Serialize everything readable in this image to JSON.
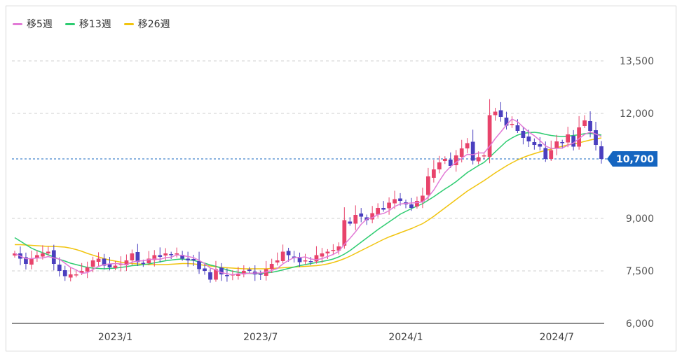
{
  "chart_data": {
    "type": "candlestick",
    "title": "",
    "legend": [
      {
        "name": "移5週",
        "color": "#e27ad6"
      },
      {
        "name": "移13週",
        "color": "#2ecc71"
      },
      {
        "name": "移26週",
        "color": "#f1c40f"
      }
    ],
    "legend_position": "top-left",
    "yticks": [
      "13,500",
      "12,000",
      "9,000",
      "7,500",
      "6,000"
    ],
    "ylim": [
      6000,
      14000
    ],
    "xticks": [
      {
        "label": "2023/1",
        "index": 18
      },
      {
        "label": "2023/7",
        "index": 44
      },
      {
        "label": "2024/1",
        "index": 70
      },
      {
        "label": "2024/7",
        "index": 97
      }
    ],
    "current_price": 10700,
    "current_price_label": "10,700",
    "grid": true,
    "colors": {
      "up": "#e8436b",
      "down": "#4a3fbf",
      "current": "#1565c0"
    },
    "closes": [
      8000,
      7850,
      7700,
      7850,
      7950,
      8000,
      8050,
      7700,
      7500,
      7350,
      7400,
      7400,
      7500,
      7600,
      7800,
      7850,
      7650,
      7600,
      7650,
      7700,
      7800,
      8000,
      7750,
      7700,
      7850,
      7950,
      7900,
      8000,
      7950,
      8000,
      7850,
      7800,
      7800,
      7550,
      7500,
      7250,
      7550,
      7400,
      7350,
      7400,
      7400,
      7500,
      7500,
      7400,
      7400,
      7550,
      7700,
      7800,
      8050,
      7950,
      7900,
      7750,
      7800,
      7750,
      7950,
      8000,
      8050,
      8100,
      8200,
      8950,
      8850,
      9100,
      9050,
      8950,
      9150,
      9300,
      9250,
      9450,
      9550,
      9500,
      9400,
      9300,
      9500,
      9650,
      10200,
      10400,
      10600,
      10700,
      10500,
      10800,
      11000,
      11150,
      10650,
      10750,
      10800,
      11950,
      12050,
      11900,
      11650,
      11700,
      11500,
      11300,
      11200,
      11100,
      11050,
      10700,
      10950,
      11200,
      11150,
      11400,
      11050,
      11600,
      11800,
      11500,
      11100,
      10700
    ],
    "ma5": [
      8000,
      7925,
      7850,
      7850,
      7870,
      7870,
      7910,
      7870,
      7840,
      7720,
      7600,
      7530,
      7430,
      7450,
      7540,
      7630,
      7680,
      7700,
      7710,
      7700,
      7680,
      7750,
      7780,
      7790,
      7820,
      7840,
      7830,
      7880,
      7890,
      7960,
      7940,
      7910,
      7880,
      7800,
      7710,
      7580,
      7530,
      7450,
      7420,
      7390,
      7420,
      7420,
      7430,
      7440,
      7440,
      7470,
      7510,
      7570,
      7700,
      7800,
      7880,
      7880,
      7900,
      7840,
      7820,
      7850,
      7910,
      7970,
      8060,
      8260,
      8430,
      8620,
      8830,
      8980,
      9020,
      9110,
      9140,
      9220,
      9340,
      9410,
      9430,
      9440,
      9450,
      9470,
      9610,
      9810,
      10070,
      10310,
      10480,
      10600,
      10720,
      10830,
      10820,
      10870,
      10870,
      11060,
      11280,
      11470,
      11670,
      11840,
      11760,
      11610,
      11470,
      11360,
      11230,
      11070,
      11000,
      11000,
      11010,
      11090,
      11150,
      11280,
      11400,
      11470,
      11410,
      11340
    ],
    "ma13": [
      8450,
      8350,
      8250,
      8150,
      8080,
      8020,
      7960,
      7900,
      7830,
      7780,
      7720,
      7680,
      7640,
      7600,
      7580,
      7570,
      7560,
      7570,
      7580,
      7600,
      7620,
      7650,
      7660,
      7680,
      7700,
      7730,
      7760,
      7790,
      7810,
      7830,
      7840,
      7820,
      7800,
      7760,
      7720,
      7670,
      7630,
      7580,
      7530,
      7490,
      7460,
      7440,
      7430,
      7420,
      7430,
      7440,
      7460,
      7490,
      7530,
      7570,
      7610,
      7650,
      7680,
      7710,
      7740,
      7770,
      7800,
      7840,
      7900,
      7980,
      8080,
      8200,
      8320,
      8440,
      8560,
      8680,
      8790,
      8900,
      9010,
      9120,
      9200,
      9280,
      9350,
      9420,
      9520,
      9620,
      9730,
      9840,
      9940,
      10050,
      10180,
      10310,
      10410,
      10510,
      10600,
      10750,
      10900,
      11050,
      11200,
      11300,
      11380,
      11430,
      11450,
      11460,
      11440,
      11400,
      11370,
      11350,
      11340,
      11350,
      11370,
      11390,
      11420,
      11430,
      11410,
      11380
    ],
    "ma26": [
      8250,
      8250,
      8240,
      8230,
      8220,
      8210,
      8200,
      8200,
      8190,
      8180,
      8150,
      8110,
      8060,
      8000,
      7950,
      7900,
      7850,
      7810,
      7780,
      7750,
      7730,
      7710,
      7700,
      7690,
      7680,
      7680,
      7680,
      7680,
      7690,
      7700,
      7710,
      7710,
      7700,
      7680,
      7660,
      7640,
      7620,
      7600,
      7590,
      7580,
      7570,
      7560,
      7560,
      7560,
      7560,
      7560,
      7570,
      7580,
      7590,
      7600,
      7610,
      7620,
      7630,
      7640,
      7650,
      7670,
      7700,
      7740,
      7790,
      7850,
      7920,
      8000,
      8080,
      8160,
      8240,
      8320,
      8400,
      8470,
      8530,
      8590,
      8650,
      8710,
      8780,
      8850,
      8950,
      9060,
      9180,
      9300,
      9420,
      9540,
      9660,
      9780,
      9880,
      9980,
      10080,
      10190,
      10300,
      10400,
      10500,
      10590,
      10670,
      10740,
      10800,
      10850,
      10900,
      10940,
      10980,
      11020,
      11060,
      11100,
      11130,
      11160,
      11200,
      11240,
      11270,
      11300
    ]
  }
}
